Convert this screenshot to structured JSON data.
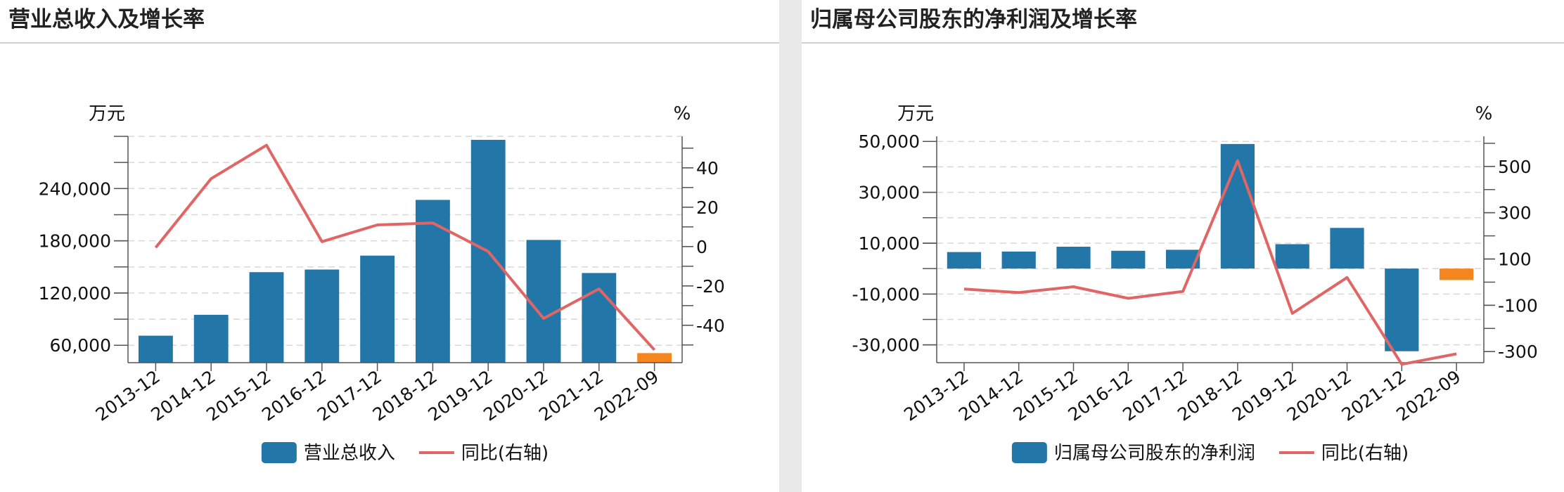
{
  "chart_data": [
    {
      "type": "bar",
      "title": "营业总收入及增长率",
      "ylabel": "万元",
      "y2label": "%",
      "categories": [
        "2013-12",
        "2014-12",
        "2015-12",
        "2016-12",
        "2017-12",
        "2018-12",
        "2019-12",
        "2020-12",
        "2021-12",
        "2022-09"
      ],
      "ylim": [
        40000,
        300000
      ],
      "yticks": [
        60000,
        120000,
        180000,
        240000
      ],
      "ytick_labels": [
        "60,000",
        "120,000",
        "180,000",
        "240,000"
      ],
      "y2lim": [
        -59,
        56
      ],
      "y2ticks": [
        -40,
        -20,
        0,
        20,
        40
      ],
      "y2tick_labels": [
        "-40",
        "-20",
        "0",
        "20",
        "40"
      ],
      "grid": true,
      "legend_position": "bottom",
      "series": [
        {
          "name": "营业总收入",
          "type": "bar",
          "axis": "left",
          "color": "#2277a8",
          "highlight_color": "#f5861f",
          "values": [
            71000,
            95000,
            144000,
            147000,
            163000,
            227000,
            296000,
            181000,
            143000,
            51000
          ]
        },
        {
          "name": "同比(右轴)",
          "type": "line",
          "axis": "right",
          "color": "#e06666",
          "values": [
            -0.5,
            34.5,
            51.5,
            2.5,
            11,
            12,
            -2.5,
            -36.5,
            -21.5,
            -52.5
          ]
        }
      ]
    },
    {
      "type": "bar",
      "title": "归属母公司股东的净利润及增长率",
      "ylabel": "万元",
      "y2label": "%",
      "categories": [
        "2013-12",
        "2014-12",
        "2015-12",
        "2016-12",
        "2017-12",
        "2018-12",
        "2019-12",
        "2020-12",
        "2021-12",
        "2022-09"
      ],
      "ylim": [
        -37000,
        52000
      ],
      "yticks": [
        -30000,
        -10000,
        10000,
        30000,
        50000
      ],
      "ytick_labels": [
        "-30,000",
        "-10,000",
        "10,000",
        "30,000",
        "50,000"
      ],
      "y2lim": [
        -348,
        630
      ],
      "y2ticks": [
        -300,
        -100,
        100,
        300,
        500
      ],
      "y2tick_labels": [
        "-300",
        "-100",
        "100",
        "300",
        "500"
      ],
      "grid": true,
      "legend_position": "bottom",
      "series": [
        {
          "name": "归属母公司股东的净利润",
          "type": "bar",
          "axis": "left",
          "color": "#2277a8",
          "highlight_color": "#f5861f",
          "values": [
            6500,
            6700,
            8600,
            7000,
            7400,
            49000,
            9600,
            16000,
            -32500,
            -4500
          ]
        },
        {
          "name": "同比(右轴)",
          "type": "line",
          "axis": "right",
          "color": "#e06666",
          "values": [
            -30,
            -45,
            -20,
            -70,
            -40,
            525,
            -135,
            20,
            -355,
            -310
          ]
        }
      ]
    }
  ]
}
